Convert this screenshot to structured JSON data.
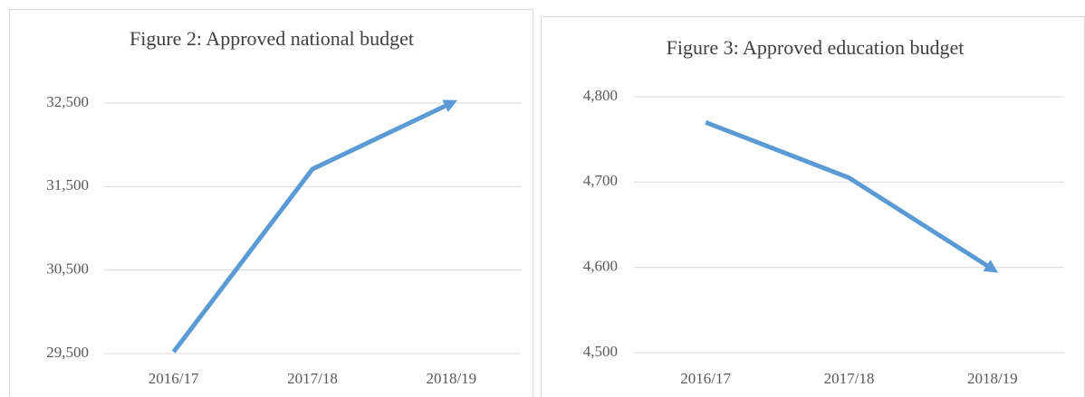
{
  "chart_data": [
    {
      "type": "line",
      "title": "Figure 2: Approved national budget",
      "categories": [
        "2016/17",
        "2017/18",
        "2018/19"
      ],
      "values": [
        29520,
        31710,
        32500
      ],
      "color": "#5b9bd5",
      "ylim": [
        29500,
        32500
      ],
      "yticks": [
        {
          "value": 29500,
          "label": "29,500"
        },
        {
          "value": 30500,
          "label": "30,500"
        },
        {
          "value": 31500,
          "label": "31,500"
        },
        {
          "value": 32500,
          "label": "32,500"
        }
      ],
      "grid": true
    },
    {
      "type": "line",
      "title": "Figure 3: Approved education budget",
      "categories": [
        "2016/17",
        "2017/18",
        "2018/19"
      ],
      "values": [
        4770,
        4705,
        4598
      ],
      "color": "#5b9bd5",
      "ylim": [
        4500,
        4800
      ],
      "yticks": [
        {
          "value": 4500,
          "label": "4,500"
        },
        {
          "value": 4600,
          "label": "4,600"
        },
        {
          "value": 4700,
          "label": "4,700"
        },
        {
          "value": 4800,
          "label": "4,800"
        }
      ],
      "grid": true
    }
  ]
}
